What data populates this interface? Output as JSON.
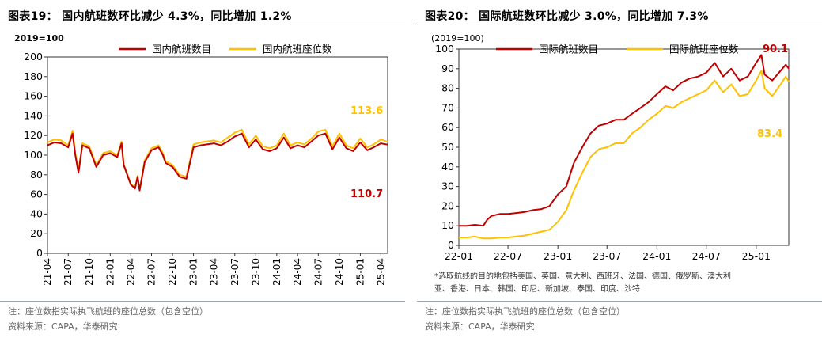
{
  "left": {
    "title": "图表19： 国内航班数环比减少 4.3%，同比增加 1.2%",
    "note": "注：座位数指实际执飞航班的座位总数（包含空位）",
    "source": "资料来源：CAPA，华泰研究",
    "colors": {
      "flights": "#c00000",
      "seats": "#ffc000"
    },
    "chart_data": {
      "type": "line",
      "unit_label": "2019=100",
      "ylim": [
        0,
        200
      ],
      "yticks": [
        0,
        20,
        40,
        60,
        80,
        100,
        120,
        140,
        160,
        180,
        200
      ],
      "xlim": [
        "2021-04",
        "2025-05"
      ],
      "xticks": [
        "21-04",
        "21-07",
        "21-10",
        "22-01",
        "22-04",
        "22-07",
        "22-10",
        "23-01",
        "23-04",
        "23-07",
        "23-10",
        "24-01",
        "24-04",
        "24-07",
        "24-10",
        "25-01",
        "25-04"
      ],
      "legend": "top",
      "annotations": [
        {
          "text": "113.6",
          "series": "国内航班座位数"
        },
        {
          "text": "110.7",
          "series": "国内航班数目"
        }
      ],
      "series": [
        {
          "name": "国内航班数目",
          "color": "#c00000",
          "points": [
            [
              "2021-04",
              110
            ],
            [
              "2021-05",
              113
            ],
            [
              "2021-06",
              112
            ],
            [
              "2021-07",
              108
            ],
            [
              "2021-07-20",
              122
            ],
            [
              "2021-08",
              100
            ],
            [
              "2021-08-15",
              82
            ],
            [
              "2021-09",
              110
            ],
            [
              "2021-10",
              107
            ],
            [
              "2021-11",
              88
            ],
            [
              "2021-12",
              100
            ],
            [
              "2022-01",
              102
            ],
            [
              "2022-02",
              98
            ],
            [
              "2022-02-20",
              112
            ],
            [
              "2022-03",
              90
            ],
            [
              "2022-04",
              70
            ],
            [
              "2022-04-20",
              66
            ],
            [
              "2022-05",
              78
            ],
            [
              "2022-05-10",
              64
            ],
            [
              "2022-06",
              93
            ],
            [
              "2022-07",
              105
            ],
            [
              "2022-08",
              108
            ],
            [
              "2022-08-20",
              100
            ],
            [
              "2022-09",
              92
            ],
            [
              "2022-10",
              88
            ],
            [
              "2022-11",
              78
            ],
            [
              "2022-12",
              76
            ],
            [
              "2023-01",
              108
            ],
            [
              "2023-02",
              110
            ],
            [
              "2023-03",
              111
            ],
            [
              "2023-04",
              112
            ],
            [
              "2023-05",
              110
            ],
            [
              "2023-06",
              114
            ],
            [
              "2023-07",
              119
            ],
            [
              "2023-08",
              122
            ],
            [
              "2023-09",
              108
            ],
            [
              "2023-10",
              116
            ],
            [
              "2023-11",
              106
            ],
            [
              "2023-12",
              104
            ],
            [
              "2024-01",
              107
            ],
            [
              "2024-02",
              118
            ],
            [
              "2024-03",
              107
            ],
            [
              "2024-04",
              110
            ],
            [
              "2024-05",
              108
            ],
            [
              "2024-06",
              114
            ],
            [
              "2024-07",
              120
            ],
            [
              "2024-08",
              122
            ],
            [
              "2024-09",
              106
            ],
            [
              "2024-10",
              118
            ],
            [
              "2024-11",
              107
            ],
            [
              "2024-12",
              104
            ],
            [
              "2025-01",
              113
            ],
            [
              "2025-02",
              105
            ],
            [
              "2025-03",
              108
            ],
            [
              "2025-04",
              112
            ],
            [
              "2025-05",
              110.7
            ]
          ]
        },
        {
          "name": "国内航班座位数",
          "color": "#ffc000",
          "points": [
            [
              "2021-04",
              113
            ],
            [
              "2021-05",
              116
            ],
            [
              "2021-06",
              115
            ],
            [
              "2021-07",
              110
            ],
            [
              "2021-07-20",
              125
            ],
            [
              "2021-08",
              102
            ],
            [
              "2021-08-15",
              84
            ],
            [
              "2021-09",
              112
            ],
            [
              "2021-10",
              109
            ],
            [
              "2021-11",
              90
            ],
            [
              "2021-12",
              102
            ],
            [
              "2022-01",
              104
            ],
            [
              "2022-02",
              100
            ],
            [
              "2022-02-20",
              114
            ],
            [
              "2022-03",
              91
            ],
            [
              "2022-04",
              71
            ],
            [
              "2022-04-20",
              67
            ],
            [
              "2022-05",
              79
            ],
            [
              "2022-05-10",
              65
            ],
            [
              "2022-06",
              95
            ],
            [
              "2022-07",
              107
            ],
            [
              "2022-08",
              110
            ],
            [
              "2022-08-20",
              102
            ],
            [
              "2022-09",
              94
            ],
            [
              "2022-10",
              90
            ],
            [
              "2022-11",
              80
            ],
            [
              "2022-12",
              78
            ],
            [
              "2023-01",
              111
            ],
            [
              "2023-02",
              113
            ],
            [
              "2023-03",
              114
            ],
            [
              "2023-04",
              115
            ],
            [
              "2023-05",
              113
            ],
            [
              "2023-06",
              118
            ],
            [
              "2023-07",
              123
            ],
            [
              "2023-08",
              126
            ],
            [
              "2023-09",
              111
            ],
            [
              "2023-10",
              120
            ],
            [
              "2023-11",
              109
            ],
            [
              "2023-12",
              107
            ],
            [
              "2024-01",
              110
            ],
            [
              "2024-02",
              122
            ],
            [
              "2024-03",
              110
            ],
            [
              "2024-04",
              113
            ],
            [
              "2024-05",
              111
            ],
            [
              "2024-06",
              117
            ],
            [
              "2024-07",
              124
            ],
            [
              "2024-08",
              126
            ],
            [
              "2024-09",
              109
            ],
            [
              "2024-10",
              122
            ],
            [
              "2024-11",
              110
            ],
            [
              "2024-12",
              107
            ],
            [
              "2025-01",
              117
            ],
            [
              "2025-02",
              108
            ],
            [
              "2025-03",
              111
            ],
            [
              "2025-04",
              116
            ],
            [
              "2025-05",
              113.6
            ]
          ]
        }
      ]
    }
  },
  "right": {
    "title": "图表20： 国际航班数环比减少 3.0%，同比增加 7.3%",
    "note": "注：座位数指实际执飞航班的座位总数（包含空位）",
    "source": "资料来源：CAPA，华泰研究",
    "footnote_line1": "*选取航线的目的地包括美国、英国、意大利、西班牙、法国、德国、俄罗斯、澳大利",
    "footnote_line2": "亚、香港、日本、韩国、印尼、新加坡、泰国、印度、沙特",
    "colors": {
      "flights": "#c00000",
      "seats": "#ffc000"
    },
    "chart_data": {
      "type": "line",
      "unit_label": "(2019=100)",
      "ylim": [
        0,
        100
      ],
      "yticks": [
        0,
        10,
        20,
        30,
        40,
        50,
        60,
        70,
        80,
        90,
        100
      ],
      "xlim": [
        "2022-01",
        "2025-05"
      ],
      "xticks": [
        "22-01",
        "22-07",
        "23-01",
        "23-07",
        "24-01",
        "24-07",
        "25-01"
      ],
      "legend": "top",
      "annotations": [
        {
          "text": "90.1",
          "series": "国际航班数目"
        },
        {
          "text": "83.4",
          "series": "国际航班座位数"
        }
      ],
      "series": [
        {
          "name": "国际航班数目",
          "color": "#c00000",
          "points": [
            [
              "2022-01",
              10
            ],
            [
              "2022-02",
              10
            ],
            [
              "2022-03",
              10.5
            ],
            [
              "2022-04",
              10
            ],
            [
              "2022-04-15",
              13
            ],
            [
              "2022-05",
              15
            ],
            [
              "2022-06",
              16
            ],
            [
              "2022-07",
              16
            ],
            [
              "2022-08",
              16.5
            ],
            [
              "2022-09",
              17
            ],
            [
              "2022-10",
              18
            ],
            [
              "2022-11",
              18.5
            ],
            [
              "2022-12",
              20
            ],
            [
              "2023-01",
              26
            ],
            [
              "2023-02",
              30
            ],
            [
              "2023-03",
              42
            ],
            [
              "2023-04",
              50
            ],
            [
              "2023-05",
              57
            ],
            [
              "2023-06",
              61
            ],
            [
              "2023-07",
              62
            ],
            [
              "2023-08",
              64
            ],
            [
              "2023-09",
              64
            ],
            [
              "2023-10",
              67
            ],
            [
              "2023-11",
              70
            ],
            [
              "2023-12",
              73
            ],
            [
              "2024-01",
              77
            ],
            [
              "2024-02",
              81
            ],
            [
              "2024-03",
              79
            ],
            [
              "2024-04",
              83
            ],
            [
              "2024-05",
              85
            ],
            [
              "2024-06",
              86
            ],
            [
              "2024-07",
              88
            ],
            [
              "2024-08",
              93
            ],
            [
              "2024-09",
              86
            ],
            [
              "2024-10",
              90
            ],
            [
              "2024-11",
              84
            ],
            [
              "2024-12",
              86
            ],
            [
              "2025-01",
              93
            ],
            [
              "2025-01-20",
              97
            ],
            [
              "2025-02",
              87
            ],
            [
              "2025-03",
              84
            ],
            [
              "2025-04",
              89
            ],
            [
              "2025-04-20",
              92
            ],
            [
              "2025-05",
              90.1
            ]
          ]
        },
        {
          "name": "国际航班座位数",
          "color": "#ffc000",
          "points": [
            [
              "2022-01",
              4
            ],
            [
              "2022-02",
              4
            ],
            [
              "2022-03",
              4.5
            ],
            [
              "2022-04",
              3.5
            ],
            [
              "2022-05",
              3.5
            ],
            [
              "2022-06",
              4
            ],
            [
              "2022-07",
              4
            ],
            [
              "2022-08",
              4.5
            ],
            [
              "2022-09",
              5
            ],
            [
              "2022-10",
              6
            ],
            [
              "2022-11",
              7
            ],
            [
              "2022-12",
              8
            ],
            [
              "2023-01",
              12
            ],
            [
              "2023-02",
              18
            ],
            [
              "2023-03",
              28
            ],
            [
              "2023-04",
              37
            ],
            [
              "2023-05",
              45
            ],
            [
              "2023-06",
              49
            ],
            [
              "2023-07",
              50
            ],
            [
              "2023-08",
              52
            ],
            [
              "2023-09",
              52
            ],
            [
              "2023-10",
              57
            ],
            [
              "2023-11",
              60
            ],
            [
              "2023-12",
              64
            ],
            [
              "2024-01",
              67
            ],
            [
              "2024-02",
              71
            ],
            [
              "2024-03",
              70
            ],
            [
              "2024-04",
              73
            ],
            [
              "2024-05",
              75
            ],
            [
              "2024-06",
              77
            ],
            [
              "2024-07",
              79
            ],
            [
              "2024-08",
              84
            ],
            [
              "2024-09",
              78
            ],
            [
              "2024-10",
              82
            ],
            [
              "2024-11",
              76
            ],
            [
              "2024-12",
              77
            ],
            [
              "2025-01",
              84
            ],
            [
              "2025-01-20",
              89
            ],
            [
              "2025-02",
              80
            ],
            [
              "2025-03",
              76
            ],
            [
              "2025-04",
              82
            ],
            [
              "2025-04-20",
              86
            ],
            [
              "2025-05",
              83.4
            ]
          ]
        }
      ]
    }
  }
}
